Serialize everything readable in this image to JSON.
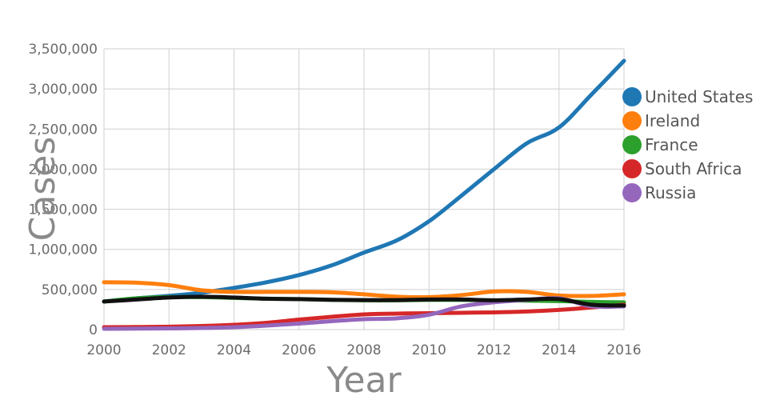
{
  "chart_data": {
    "type": "line",
    "title": "",
    "xlabel": "Year",
    "ylabel": "Cases",
    "xlim": [
      2000,
      2016
    ],
    "ylim": [
      0,
      3500000
    ],
    "grid": true,
    "legend_position": "right",
    "x_ticks": [
      2000,
      2002,
      2004,
      2006,
      2008,
      2010,
      2012,
      2014,
      2016
    ],
    "y_ticks": [
      0,
      500000,
      1000000,
      1500000,
      2000000,
      2500000,
      3000000,
      3500000
    ],
    "x_tick_labels": [
      "2000",
      "2002",
      "2004",
      "2006",
      "2008",
      "2010",
      "2012",
      "2014",
      "2016"
    ],
    "y_tick_labels": [
      "0",
      "500,000",
      "1,000,000",
      "1,500,000",
      "2,000,000",
      "2,500,000",
      "3,000,000",
      "3,500,000"
    ],
    "x": [
      2000,
      2001,
      2002,
      2003,
      2004,
      2005,
      2006,
      2007,
      2008,
      2009,
      2010,
      2011,
      2012,
      2013,
      2014,
      2015,
      2016
    ],
    "series": [
      {
        "name": "United States",
        "color": "#1f77b4",
        "values": [
          350000,
          390000,
          420000,
          460000,
          520000,
          590000,
          680000,
          800000,
          960000,
          1110000,
          1350000,
          1670000,
          2000000,
          2320000,
          2520000,
          2930000,
          3350000
        ]
      },
      {
        "name": "Ireland",
        "color": "#ff7f0e",
        "values": [
          590000,
          585000,
          555000,
          490000,
          470000,
          470000,
          470000,
          465000,
          440000,
          410000,
          405000,
          430000,
          475000,
          470000,
          425000,
          420000,
          440000
        ]
      },
      {
        "name": "France",
        "color": "#2ca02c",
        "values": [
          350000,
          390000,
          405000,
          405000,
          395000,
          385000,
          380000,
          370000,
          365000,
          365000,
          370000,
          370000,
          365000,
          360000,
          355000,
          345000,
          340000
        ]
      },
      {
        "name": "South Africa",
        "color": "#d62728",
        "values": [
          30000,
          32000,
          36000,
          45000,
          60000,
          85000,
          125000,
          160000,
          190000,
          200000,
          205000,
          210000,
          215000,
          225000,
          245000,
          275000,
          310000
        ]
      },
      {
        "name": "Russia",
        "color": "#9467bd",
        "values": [
          10000,
          12000,
          15000,
          20000,
          30000,
          50000,
          75000,
          105000,
          130000,
          140000,
          185000,
          290000,
          340000,
          370000,
          390000,
          290000,
          290000
        ]
      },
      {
        "color": "#111111",
        "values": [
          350000,
          375000,
          400000,
          410000,
          400000,
          385000,
          380000,
          372000,
          368000,
          368000,
          375000,
          375000,
          365000,
          375000,
          380000,
          310000,
          300000
        ]
      }
    ]
  }
}
